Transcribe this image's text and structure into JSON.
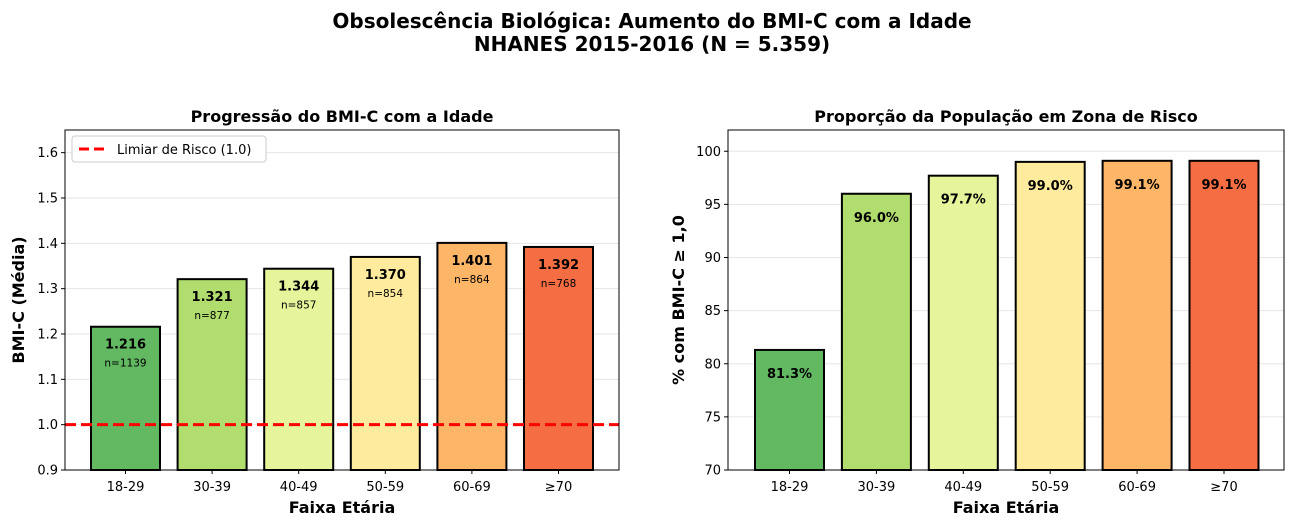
{
  "suptitle": {
    "line1": "Obsolescência Biológica: Aumento do BMI-C com a Idade",
    "line2": "NHANES 2015-2016 (N = 5.359)"
  },
  "colors": [
    "#63b862",
    "#b1dc6e",
    "#e6f49b",
    "#feeb9e",
    "#fdb568",
    "#f46d43"
  ],
  "threshold_color": "#ff0000",
  "chart_data": [
    {
      "type": "bar",
      "title": "Progressão do BMI-C com a Idade",
      "xlabel": "Faixa Etária",
      "ylabel": "BMI-C (Média)",
      "categories": [
        "18-29",
        "30-39",
        "40-49",
        "50-59",
        "60-69",
        "≥70"
      ],
      "values": [
        1.216,
        1.321,
        1.344,
        1.37,
        1.401,
        1.392
      ],
      "value_labels": [
        "1.216",
        "1.321",
        "1.344",
        "1.370",
        "1.401",
        "1.392"
      ],
      "n_labels": [
        "n=1139",
        "n=877",
        "n=857",
        "n=854",
        "n=864",
        "n=768"
      ],
      "ylim": [
        0.9,
        1.65
      ],
      "yticks": [
        0.9,
        1.0,
        1.1,
        1.2,
        1.3,
        1.4,
        1.5,
        1.6
      ],
      "ytick_labels": [
        "0.9",
        "1.0",
        "1.1",
        "1.2",
        "1.3",
        "1.4",
        "1.5",
        "1.6"
      ],
      "threshold": 1.0,
      "legend": [
        "Limiar de Risco (1.0)"
      ],
      "legend_position": "upper-left",
      "grid": "y"
    },
    {
      "type": "bar",
      "title": "Proporção da População em Zona de Risco",
      "xlabel": "Faixa Etária",
      "ylabel": "% com BMI-C ≥ 1,0",
      "categories": [
        "18-29",
        "30-39",
        "40-49",
        "50-59",
        "60-69",
        "≥70"
      ],
      "values": [
        81.3,
        96.0,
        97.7,
        99.0,
        99.1,
        99.1
      ],
      "value_labels": [
        "81.3%",
        "96.0%",
        "97.7%",
        "99.0%",
        "99.1%",
        "99.1%"
      ],
      "ylim": [
        70,
        102
      ],
      "yticks": [
        70,
        75,
        80,
        85,
        90,
        95,
        100
      ],
      "ytick_labels": [
        "70",
        "75",
        "80",
        "85",
        "90",
        "95",
        "100"
      ],
      "grid": "y"
    }
  ]
}
